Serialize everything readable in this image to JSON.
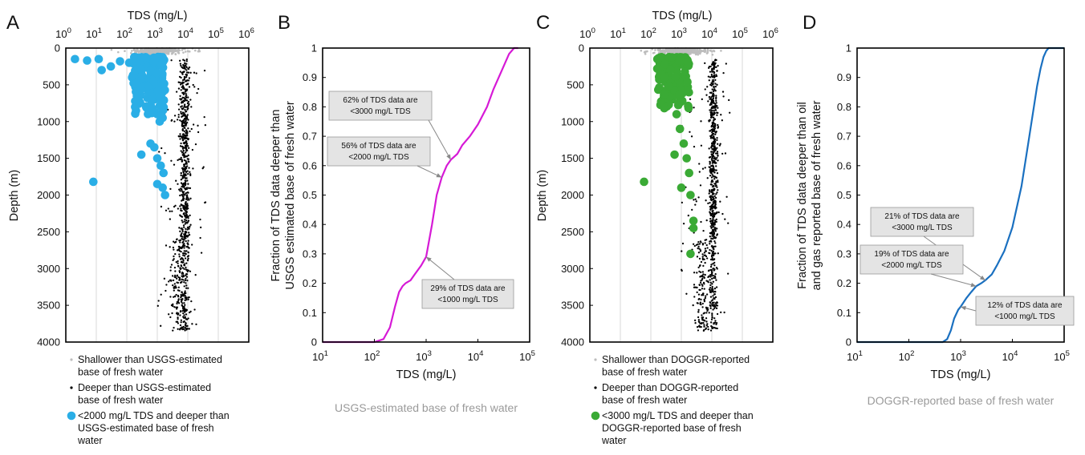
{
  "colors": {
    "shallow": "#bdbdbd",
    "deep": "#000000",
    "highlightA": "#2aaee6",
    "highlightC": "#3aaa35",
    "curveB": "#d61ad6",
    "curveD": "#1a70c0",
    "annotBox": "#e4e4e4"
  },
  "panels": [
    {
      "id": "A",
      "letter": "A",
      "chart_data": {
        "type": "scatter",
        "xlabel": "TDS (mg/L)",
        "ylabel": "Depth (m)",
        "x_scale": "log",
        "xlim": [
          1,
          1000000
        ],
        "ylim": [
          4000,
          0
        ],
        "x_ticks": [
          "10",
          "10",
          "10",
          "10",
          "10",
          "10",
          "10"
        ],
        "x_exponents": [
          "0",
          "1",
          "2",
          "3",
          "4",
          "5",
          "6"
        ],
        "y_ticks": [
          "0",
          "500",
          "1000",
          "1500",
          "2000",
          "2500",
          "3000",
          "3500",
          "4000"
        ],
        "y_tick_values": [
          0,
          500,
          1000,
          1500,
          2000,
          2500,
          3000,
          3500,
          4000
        ],
        "grid": "vertical",
        "highlight_points": [
          [
            2,
            150
          ],
          [
            5,
            170
          ],
          [
            8,
            1820
          ],
          [
            12,
            150
          ],
          [
            15,
            300
          ],
          [
            30,
            250
          ],
          [
            60,
            180
          ],
          [
            120,
            200
          ],
          [
            150,
            400
          ],
          [
            200,
            350
          ],
          [
            300,
            500
          ],
          [
            500,
            600
          ],
          [
            800,
            700
          ],
          [
            1000,
            900
          ],
          [
            1200,
            1000
          ],
          [
            1500,
            950
          ],
          [
            300,
            1450
          ],
          [
            800,
            1350
          ],
          [
            1000,
            1500
          ],
          [
            1300,
            1600
          ],
          [
            1600,
            1700
          ],
          [
            1000,
            1850
          ],
          [
            1500,
            1900
          ],
          [
            1800,
            2000
          ],
          [
            600,
            1300
          ]
        ],
        "legend": [
          {
            "symbol": "shallow",
            "text": [
              "Shallower than USGS-estimated",
              "base of fresh water"
            ]
          },
          {
            "symbol": "deep",
            "text": [
              "Deeper than USGS-estimated",
              "base of fresh water"
            ]
          },
          {
            "symbol": "highlight",
            "text": [
              "<2000 mg/L TDS and deeper than",
              "USGS-estimated base of fresh",
              "water"
            ]
          }
        ]
      }
    },
    {
      "id": "B",
      "letter": "B",
      "caption": "USGS-estimated base of fresh water",
      "chart_data": {
        "type": "line",
        "xlabel": "TDS (mg/L)",
        "ylabel": [
          "Fraction of TDS data deeper than",
          "USGS estimated base of fresh water"
        ],
        "x_scale": "log",
        "xlim": [
          10,
          100000
        ],
        "ylim": [
          0,
          1
        ],
        "x_ticks": [
          "10",
          "10",
          "10",
          "10",
          "10"
        ],
        "x_exponents": [
          "1",
          "2",
          "3",
          "4",
          "5"
        ],
        "y_ticks": [
          "0",
          "0.1",
          "0.2",
          "0.3",
          "0.4",
          "0.5",
          "0.6",
          "0.7",
          "0.8",
          "0.9",
          "1"
        ],
        "y_tick_values": [
          0,
          0.1,
          0.2,
          0.3,
          0.4,
          0.5,
          0.6,
          0.7,
          0.8,
          0.9,
          1
        ],
        "series": [
          {
            "x": [
              10,
              100,
              150,
              200,
              250,
              300,
              350,
              400,
              500,
              600,
              800,
              1000,
              1300,
              1600,
              2000,
              2500,
              3000,
              4000,
              5000,
              7000,
              10000,
              15000,
              20000,
              30000,
              40000,
              50000,
              60000
            ],
            "y": [
              0,
              0,
              0.01,
              0.05,
              0.12,
              0.17,
              0.19,
              0.2,
              0.21,
              0.23,
              0.26,
              0.29,
              0.4,
              0.5,
              0.56,
              0.6,
              0.62,
              0.64,
              0.67,
              0.7,
              0.74,
              0.8,
              0.86,
              0.93,
              0.98,
              1,
              1
            ]
          }
        ],
        "annotations": [
          {
            "lines": [
              "62% of TDS data are",
              "<3000 mg/L TDS"
            ],
            "x": 3000,
            "y": 0.62
          },
          {
            "lines": [
              "56% of TDS data are",
              "<2000 mg/L TDS"
            ],
            "x": 2000,
            "y": 0.56
          },
          {
            "lines": [
              "29% of TDS data are",
              "<1000 mg/L TDS"
            ],
            "x": 1000,
            "y": 0.29
          }
        ]
      }
    },
    {
      "id": "C",
      "letter": "C",
      "chart_data": {
        "type": "scatter",
        "xlabel": "TDS (mg/L)",
        "ylabel": "Depth (m)",
        "x_scale": "log",
        "xlim": [
          1,
          1000000
        ],
        "ylim": [
          4000,
          0
        ],
        "x_ticks": [
          "10",
          "10",
          "10",
          "10",
          "10",
          "10",
          "10"
        ],
        "x_exponents": [
          "0",
          "1",
          "2",
          "3",
          "4",
          "5",
          "6"
        ],
        "y_ticks": [
          "0",
          "500",
          "1000",
          "1500",
          "2000",
          "2500",
          "3000",
          "3500",
          "4000"
        ],
        "y_tick_values": [
          0,
          500,
          1000,
          1500,
          2000,
          2500,
          3000,
          3500,
          4000
        ],
        "grid": "vertical",
        "highlight_points": [
          [
            60,
            1820
          ],
          [
            200,
            150
          ],
          [
            300,
            300
          ],
          [
            400,
            500
          ],
          [
            500,
            700
          ],
          [
            700,
            900
          ],
          [
            900,
            1100
          ],
          [
            1200,
            1300
          ],
          [
            1500,
            1500
          ],
          [
            1800,
            1700
          ],
          [
            600,
            1450
          ],
          [
            1000,
            1900
          ],
          [
            2000,
            2000
          ],
          [
            2500,
            2350
          ],
          [
            2500,
            2450
          ],
          [
            2000,
            2800
          ],
          [
            300,
            800
          ],
          [
            800,
            400
          ]
        ],
        "legend": [
          {
            "symbol": "shallow",
            "text": [
              "Shallower than DOGGR-reported",
              "base of fresh water"
            ]
          },
          {
            "symbol": "deep",
            "text": [
              "Deeper than DOGGR-reported",
              "base of fresh water"
            ]
          },
          {
            "symbol": "highlight",
            "text": [
              "<3000 mg/L TDS and deeper than",
              "DOGGR-reported base of fresh",
              "water"
            ]
          }
        ]
      }
    },
    {
      "id": "D",
      "letter": "D",
      "caption": "DOGGR-reported base of fresh water",
      "chart_data": {
        "type": "line",
        "xlabel": "TDS (mg/L)",
        "ylabel": [
          "Fraction of TDS data deeper than oil",
          "and gas reported base of fresh water"
        ],
        "x_scale": "log",
        "xlim": [
          10,
          100000
        ],
        "ylim": [
          0,
          1
        ],
        "x_ticks": [
          "10",
          "10",
          "10",
          "10",
          "10"
        ],
        "x_exponents": [
          "1",
          "2",
          "3",
          "4",
          "5"
        ],
        "y_ticks": [
          "0",
          "0.1",
          "0.2",
          "0.3",
          "0.4",
          "0.5",
          "0.6",
          "0.7",
          "0.8",
          "0.9",
          "1"
        ],
        "y_tick_values": [
          0,
          0.1,
          0.2,
          0.3,
          0.4,
          0.5,
          0.6,
          0.7,
          0.8,
          0.9,
          1
        ],
        "series": [
          {
            "x": [
              10,
              450,
              550,
              650,
              750,
              900,
              1000,
              1300,
              1600,
              2000,
              2500,
              3000,
              4000,
              5000,
              7000,
              10000,
              15000,
              20000,
              25000,
              30000,
              35000,
              40000,
              45000,
              50000,
              60000,
              80000,
              100000
            ],
            "y": [
              0,
              0,
              0.01,
              0.04,
              0.08,
              0.11,
              0.12,
              0.15,
              0.17,
              0.19,
              0.2,
              0.21,
              0.23,
              0.26,
              0.31,
              0.39,
              0.53,
              0.67,
              0.78,
              0.87,
              0.93,
              0.97,
              0.99,
              1,
              1,
              1,
              1
            ]
          }
        ],
        "annotations": [
          {
            "lines": [
              "21% of TDS data are",
              "<3000 mg/L TDS"
            ],
            "x": 3000,
            "y": 0.21
          },
          {
            "lines": [
              "19% of TDS data are",
              "<2000 mg/L TDS"
            ],
            "x": 2000,
            "y": 0.19
          },
          {
            "lines": [
              "12% of TDS data are",
              "<1000 mg/L TDS"
            ],
            "x": 1000,
            "y": 0.12
          }
        ]
      }
    }
  ]
}
